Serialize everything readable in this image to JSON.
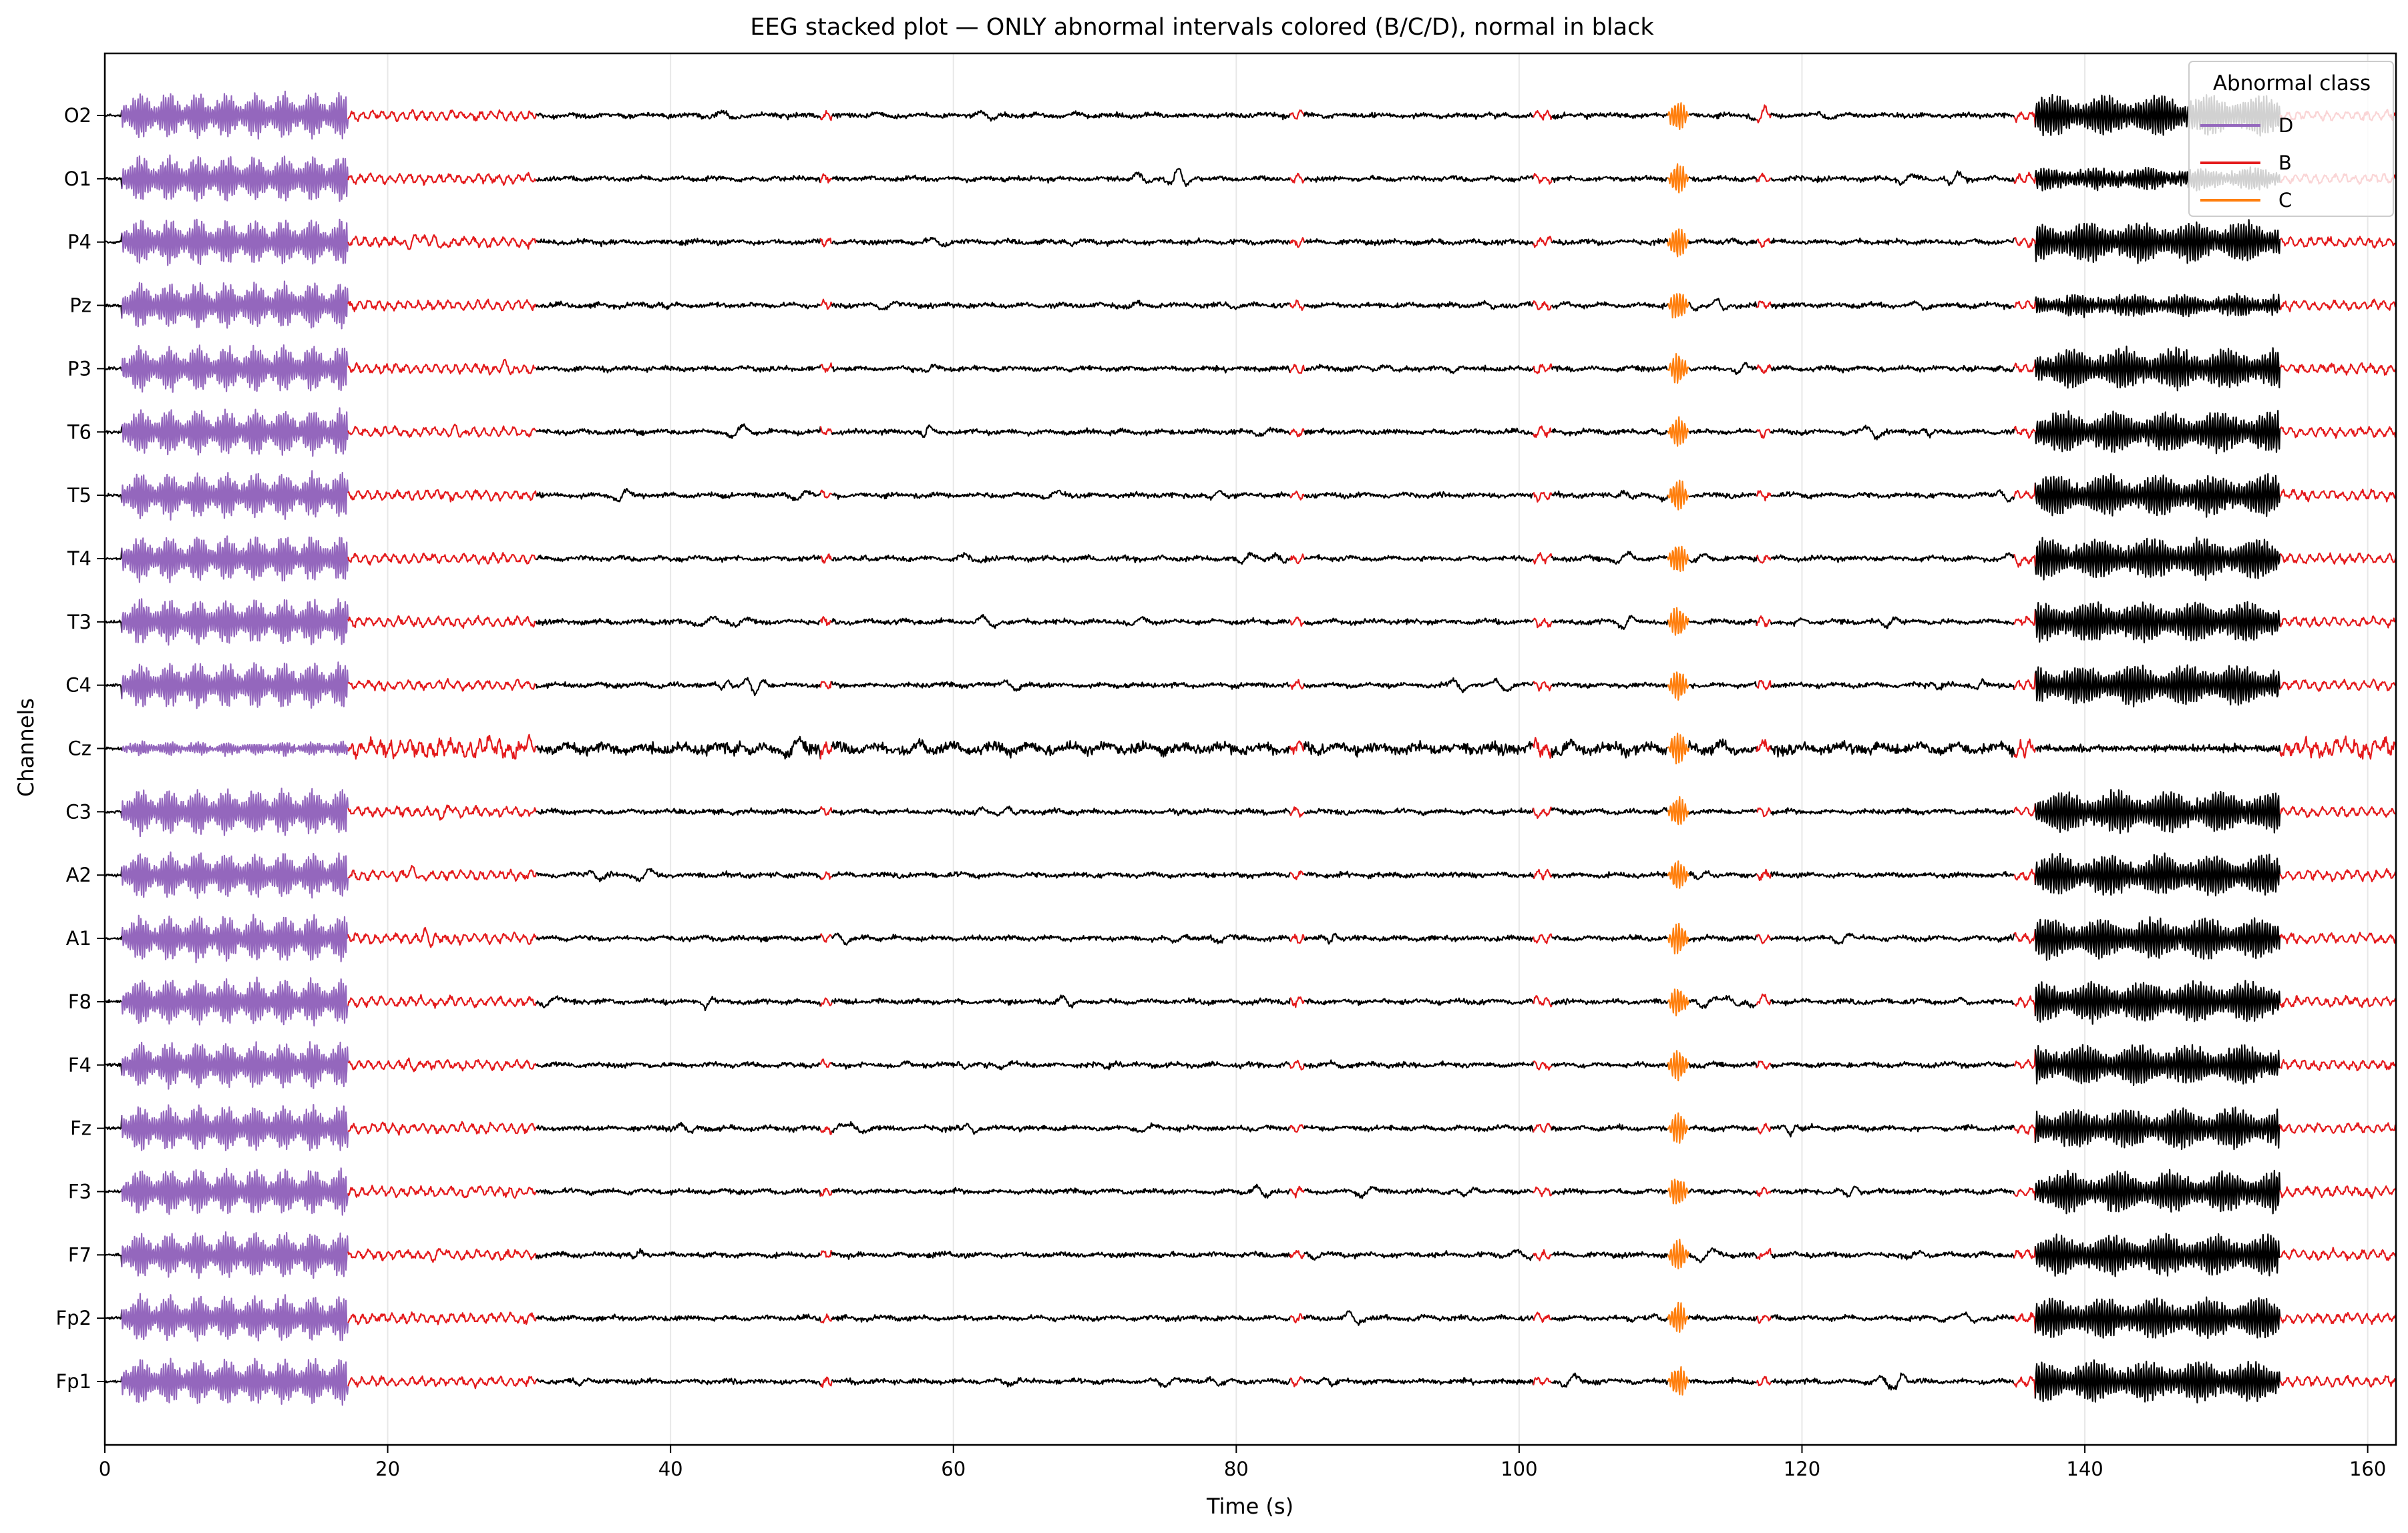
{
  "chart_data": {
    "type": "line",
    "title": "EEG stacked plot — ONLY abnormal intervals colored (B/C/D), normal in black",
    "xlabel": "Time (s)",
    "ylabel": "Channels",
    "xlim": [
      0,
      162
    ],
    "x_ticks": [
      0,
      20,
      40,
      60,
      80,
      100,
      120,
      140,
      160
    ],
    "grid": true,
    "legend": {
      "title": "Abnormal class",
      "placement": "top-right",
      "entries": [
        {
          "name": "D",
          "color": "#9467bd"
        },
        {
          "name": "B",
          "color": "#e41a1c"
        },
        {
          "name": "C",
          "color": "#ff7f0e"
        }
      ]
    },
    "normal_color": "#000000",
    "channels": [
      "O2",
      "O1",
      "P4",
      "Pz",
      "P3",
      "T6",
      "T5",
      "T4",
      "T3",
      "C4",
      "Cz",
      "C3",
      "A2",
      "A1",
      "F8",
      "F4",
      "Fz",
      "F3",
      "F7",
      "Fp2",
      "Fp1"
    ],
    "abnormal_intervals": [
      {
        "class": "D",
        "start": 1.2,
        "end": 17.2
      },
      {
        "class": "B",
        "start": 17.2,
        "end": 30.5
      },
      {
        "class": "B",
        "start": 50.6,
        "end": 51.4
      },
      {
        "class": "B",
        "start": 83.8,
        "end": 84.8
      },
      {
        "class": "B",
        "start": 101.0,
        "end": 102.3
      },
      {
        "class": "C",
        "start": 110.5,
        "end": 112.0
      },
      {
        "class": "B",
        "start": 116.8,
        "end": 117.8
      },
      {
        "class": "B",
        "start": 135.0,
        "end": 136.5
      },
      {
        "class": "B",
        "start": 153.8,
        "end": 162.0
      }
    ],
    "bursts": [
      {
        "start": 136.5,
        "end": 153.8,
        "description": "high-amplitude rhythmic activity"
      }
    ]
  }
}
